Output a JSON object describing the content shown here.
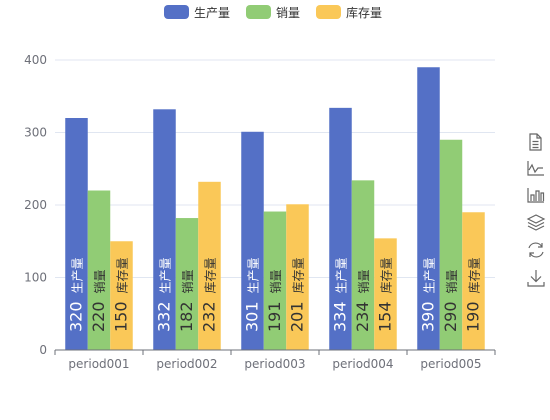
{
  "chart_data": {
    "type": "bar",
    "categories": [
      "period001",
      "period002",
      "period003",
      "period004",
      "period005"
    ],
    "series": [
      {
        "name": "生产量",
        "color": "#5470c6",
        "values": [
          320,
          332,
          301,
          334,
          390
        ]
      },
      {
        "name": "销量",
        "color": "#91cc75",
        "values": [
          220,
          182,
          191,
          234,
          290
        ]
      },
      {
        "name": "库存量",
        "color": "#fac858",
        "values": [
          150,
          232,
          201,
          154,
          190
        ]
      }
    ],
    "title": "",
    "xlabel": "",
    "ylabel": "",
    "ylim": [
      0,
      400
    ],
    "yticks": [
      0,
      100,
      200,
      300,
      400
    ],
    "grid": true,
    "legend_position": "top-center",
    "data_labels": "inside-bottom, rotated vertical, value followed by series name"
  },
  "toolbox": {
    "icons": [
      "data-view-icon",
      "line-chart-icon",
      "bar-chart-icon",
      "stack-icon",
      "restore-icon",
      "save-image-icon"
    ]
  }
}
